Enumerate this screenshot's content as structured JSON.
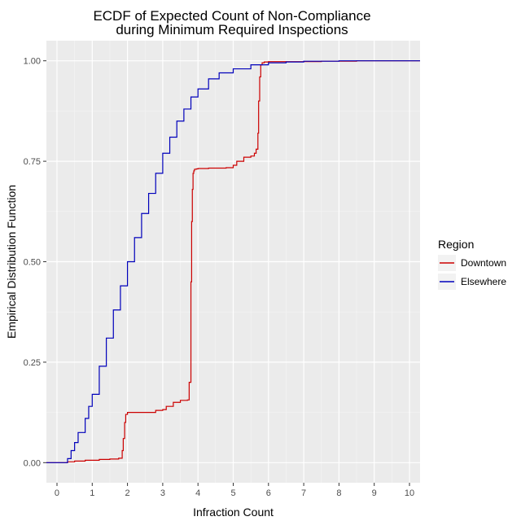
{
  "chart_data": {
    "type": "line",
    "title": [
      "ECDF of Expected Count of Non-Compliance",
      "during Minimum Required Inspections"
    ],
    "xlabel": "Infraction Count",
    "ylabel": "Empirical Distribution Function",
    "xlim": [
      -0.3,
      10.3
    ],
    "ylim": [
      -0.05,
      1.05
    ],
    "x_ticks": [
      0,
      1,
      2,
      3,
      4,
      5,
      6,
      7,
      8,
      9,
      10
    ],
    "x_tick_labels": [
      "0",
      "1",
      "2",
      "3",
      "4",
      "5",
      "6",
      "7",
      "8",
      "9",
      "10"
    ],
    "y_ticks": [
      0,
      0.25,
      0.5,
      0.75,
      1.0
    ],
    "y_tick_labels": [
      "0.00",
      "0.25",
      "0.50",
      "0.75",
      "1.00"
    ],
    "grid": true,
    "legend": {
      "title": "Region",
      "position": "right"
    },
    "series": [
      {
        "name": "Downtown",
        "color": "#cc0000",
        "x": [
          -0.3,
          0.25,
          0.3,
          0.5,
          0.8,
          1.2,
          1.5,
          1.75,
          1.85,
          1.88,
          1.92,
          1.95,
          2.0,
          2.5,
          2.8,
          3.0,
          3.1,
          3.3,
          3.5,
          3.7,
          3.75,
          3.8,
          3.82,
          3.84,
          3.86,
          3.88,
          3.9,
          3.95,
          4.0,
          4.3,
          4.8,
          5.0,
          5.1,
          5.3,
          5.5,
          5.6,
          5.65,
          5.7,
          5.72,
          5.75,
          5.78,
          5.82,
          5.88,
          6.0,
          6.2,
          6.5,
          7.0,
          7.5,
          8.0,
          8.5,
          9.0,
          10.3
        ],
        "y": [
          0,
          0,
          0.002,
          0.004,
          0.006,
          0.008,
          0.009,
          0.011,
          0.03,
          0.06,
          0.1,
          0.12,
          0.125,
          0.125,
          0.13,
          0.132,
          0.14,
          0.15,
          0.155,
          0.156,
          0.2,
          0.45,
          0.6,
          0.68,
          0.72,
          0.726,
          0.73,
          0.731,
          0.732,
          0.733,
          0.734,
          0.74,
          0.75,
          0.76,
          0.763,
          0.77,
          0.78,
          0.82,
          0.9,
          0.96,
          0.99,
          0.995,
          0.997,
          0.998,
          0.998,
          0.998,
          0.998,
          0.999,
          0.999,
          1.0,
          1.0,
          1.0
        ]
      },
      {
        "name": "Elsewhere",
        "color": "#0000bb",
        "x": [
          -0.3,
          0.2,
          0.3,
          0.4,
          0.5,
          0.6,
          0.8,
          0.9,
          1.0,
          1.2,
          1.4,
          1.6,
          1.8,
          2.0,
          2.2,
          2.4,
          2.6,
          2.8,
          3.0,
          3.2,
          3.4,
          3.6,
          3.8,
          4.0,
          4.3,
          4.6,
          5.0,
          5.5,
          6.0,
          6.5,
          7.0,
          8.0,
          9.0,
          10.3
        ],
        "y": [
          0,
          0,
          0.01,
          0.03,
          0.05,
          0.075,
          0.11,
          0.14,
          0.17,
          0.24,
          0.31,
          0.38,
          0.44,
          0.5,
          0.56,
          0.62,
          0.67,
          0.72,
          0.77,
          0.81,
          0.85,
          0.88,
          0.91,
          0.93,
          0.955,
          0.97,
          0.98,
          0.99,
          0.995,
          0.997,
          0.999,
          1.0,
          1.0,
          1.0
        ]
      }
    ]
  }
}
